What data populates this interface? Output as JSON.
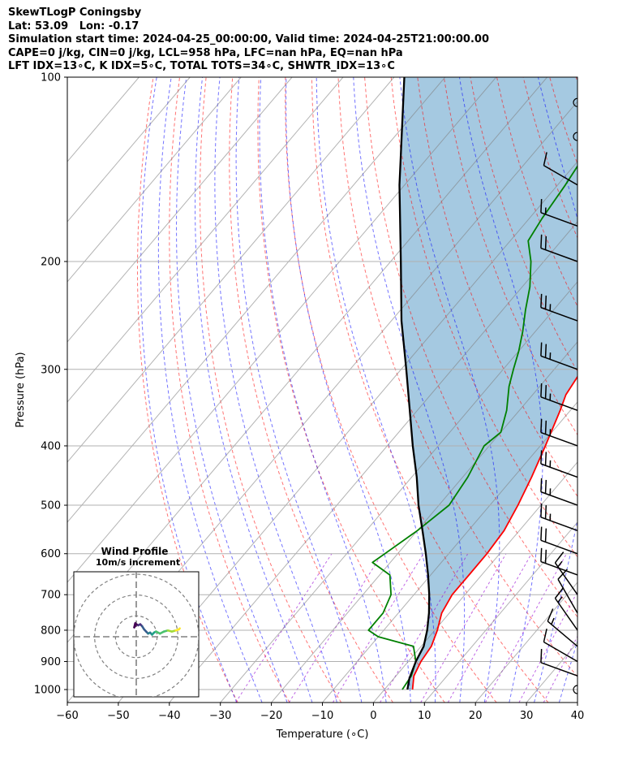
{
  "header": {
    "lines": [
      "SkewTLogP Coningsby",
      "Lat: 53.09   Lon: -0.17",
      "Simulation start time: 2024-04-25_00:00:00, Valid time: 2024-04-25T21:00:00.00",
      "CAPE=0 j/kg, CIN=0 j/kg, LCL=958 hPa, LFC=nan hPa, EQ=nan hPa",
      "LFT IDX=13∘C, K IDX=5∘C, TOTAL TOTS=34∘C, SHWTR_IDX=13∘C"
    ]
  },
  "chart_data": {
    "type": "line",
    "subtype": "skew-T log-P diagram",
    "xlabel": "Temperature (∘C)",
    "ylabel": "Pressure (hPa)",
    "xlim": [
      -60,
      40
    ],
    "ylim": [
      1050,
      100
    ],
    "x_ticks": [
      -60,
      -50,
      -40,
      -30,
      -20,
      -10,
      0,
      10,
      20,
      30,
      40
    ],
    "y_ticks": [
      1000,
      900,
      800,
      700,
      600,
      500,
      400,
      300,
      200,
      100
    ],
    "series": [
      {
        "name": "Temperature",
        "color": "#ff0000",
        "points": [
          [
            1000,
            5.5
          ],
          [
            950,
            3.5
          ],
          [
            900,
            2.5
          ],
          [
            850,
            2.0
          ],
          [
            800,
            0.5
          ],
          [
            750,
            -1.5
          ],
          [
            700,
            -2.5
          ],
          [
            650,
            -2.5
          ],
          [
            600,
            -2.5
          ],
          [
            550,
            -3.0
          ],
          [
            500,
            -4.5
          ],
          [
            450,
            -6.5
          ],
          [
            400,
            -9.0
          ],
          [
            350,
            -12.0
          ],
          [
            330,
            -13.5
          ],
          [
            300,
            -14.5
          ],
          [
            270,
            -15.5
          ],
          [
            260,
            -15.0
          ],
          [
            250,
            -14.5
          ],
          [
            230,
            -13.0
          ],
          [
            210,
            -11.5
          ],
          [
            200,
            -11.0
          ],
          [
            180,
            -11.5
          ],
          [
            160,
            -12.0
          ],
          [
            140,
            -14.0
          ],
          [
            125,
            -15.5
          ],
          [
            110,
            -16.5
          ],
          [
            100,
            -17.0
          ]
        ]
      },
      {
        "name": "Dewpoint",
        "color": "#008000",
        "points": [
          [
            1000,
            3.5
          ],
          [
            950,
            3.0
          ],
          [
            900,
            1.5
          ],
          [
            850,
            -1.5
          ],
          [
            820,
            -10.0
          ],
          [
            800,
            -13.0
          ],
          [
            750,
            -13.0
          ],
          [
            700,
            -14.5
          ],
          [
            650,
            -18.0
          ],
          [
            620,
            -23.5
          ],
          [
            600,
            -22.5
          ],
          [
            550,
            -20.0
          ],
          [
            500,
            -18.0
          ],
          [
            450,
            -19.0
          ],
          [
            400,
            -21.0
          ],
          [
            380,
            -20.0
          ],
          [
            350,
            -22.5
          ],
          [
            320,
            -26.0
          ],
          [
            300,
            -28.0
          ],
          [
            280,
            -30.0
          ],
          [
            260,
            -32.5
          ],
          [
            240,
            -35.5
          ],
          [
            220,
            -38.5
          ],
          [
            200,
            -42.5
          ],
          [
            185,
            -46.5
          ],
          [
            170,
            -47.5
          ],
          [
            150,
            -48.5
          ],
          [
            130,
            -50.0
          ],
          [
            110,
            -51.5
          ],
          [
            100,
            -52.5
          ]
        ]
      },
      {
        "name": "Parcel",
        "color": "#000000",
        "points": [
          [
            1000,
            4.5
          ],
          [
            958,
            3.0
          ],
          [
            900,
            1.5
          ],
          [
            850,
            0.5
          ],
          [
            800,
            -1.5
          ],
          [
            750,
            -4.0
          ],
          [
            700,
            -7.0
          ],
          [
            650,
            -10.5
          ],
          [
            600,
            -14.5
          ],
          [
            550,
            -19.0
          ],
          [
            500,
            -24.0
          ],
          [
            450,
            -29.0
          ],
          [
            400,
            -35.0
          ],
          [
            350,
            -41.5
          ],
          [
            300,
            -49.0
          ],
          [
            250,
            -58.0
          ],
          [
            200,
            -68.0
          ],
          [
            150,
            -81.0
          ],
          [
            100,
            -98.0
          ]
        ]
      }
    ],
    "wind_barbs": [
      {
        "p": 1000,
        "kind": "calm"
      },
      {
        "p": 950,
        "speed_kt": 10,
        "dir_deg": 290
      },
      {
        "p": 900,
        "speed_kt": 10,
        "dir_deg": 300
      },
      {
        "p": 850,
        "speed_kt": 15,
        "dir_deg": 310
      },
      {
        "p": 800,
        "speed_kt": 15,
        "dir_deg": 325
      },
      {
        "p": 750,
        "speed_kt": 10,
        "dir_deg": 330
      },
      {
        "p": 700,
        "speed_kt": 15,
        "dir_deg": 325
      },
      {
        "p": 650,
        "speed_kt": 20,
        "dir_deg": 290
      },
      {
        "p": 600,
        "speed_kt": 20,
        "dir_deg": 290
      },
      {
        "p": 550,
        "speed_kt": 25,
        "dir_deg": 290
      },
      {
        "p": 500,
        "speed_kt": 25,
        "dir_deg": 290
      },
      {
        "p": 450,
        "speed_kt": 25,
        "dir_deg": 290
      },
      {
        "p": 400,
        "speed_kt": 25,
        "dir_deg": 290
      },
      {
        "p": 350,
        "speed_kt": 25,
        "dir_deg": 290
      },
      {
        "p": 300,
        "speed_kt": 25,
        "dir_deg": 290
      },
      {
        "p": 250,
        "speed_kt": 25,
        "dir_deg": 290
      },
      {
        "p": 200,
        "speed_kt": 20,
        "dir_deg": 290
      },
      {
        "p": 175,
        "speed_kt": 15,
        "dir_deg": 290
      },
      {
        "p": 150,
        "speed_kt": 10,
        "dir_deg": 300
      },
      {
        "p": 125,
        "kind": "calm"
      },
      {
        "p": 110,
        "kind": "calm"
      }
    ],
    "hodograph": {
      "title": "Wind Profile",
      "subtitle": "10m/s increment",
      "ring_increment_ms": 10,
      "rings": 3,
      "range_ms": 30,
      "points": [
        [
          -0.5,
          -6.5
        ],
        [
          -1.0,
          -4.5
        ],
        [
          0.0,
          -6.0
        ],
        [
          1.0,
          -5.5
        ],
        [
          2.0,
          -6.0
        ],
        [
          3.0,
          -5.0
        ],
        [
          4.0,
          -3.5
        ],
        [
          5.0,
          -2.5
        ],
        [
          6.0,
          -1.5
        ],
        [
          7.0,
          -2.0
        ],
        [
          8.0,
          -1.0
        ],
        [
          9.0,
          -2.0
        ],
        [
          10.0,
          -2.5
        ],
        [
          12.0,
          -1.5
        ],
        [
          14.0,
          -2.5
        ],
        [
          16.0,
          -3.0
        ],
        [
          18.0,
          -2.5
        ],
        [
          20.0,
          -3.0
        ],
        [
          21.5,
          -3.5
        ],
        [
          22.0,
          -4.0
        ]
      ]
    }
  }
}
